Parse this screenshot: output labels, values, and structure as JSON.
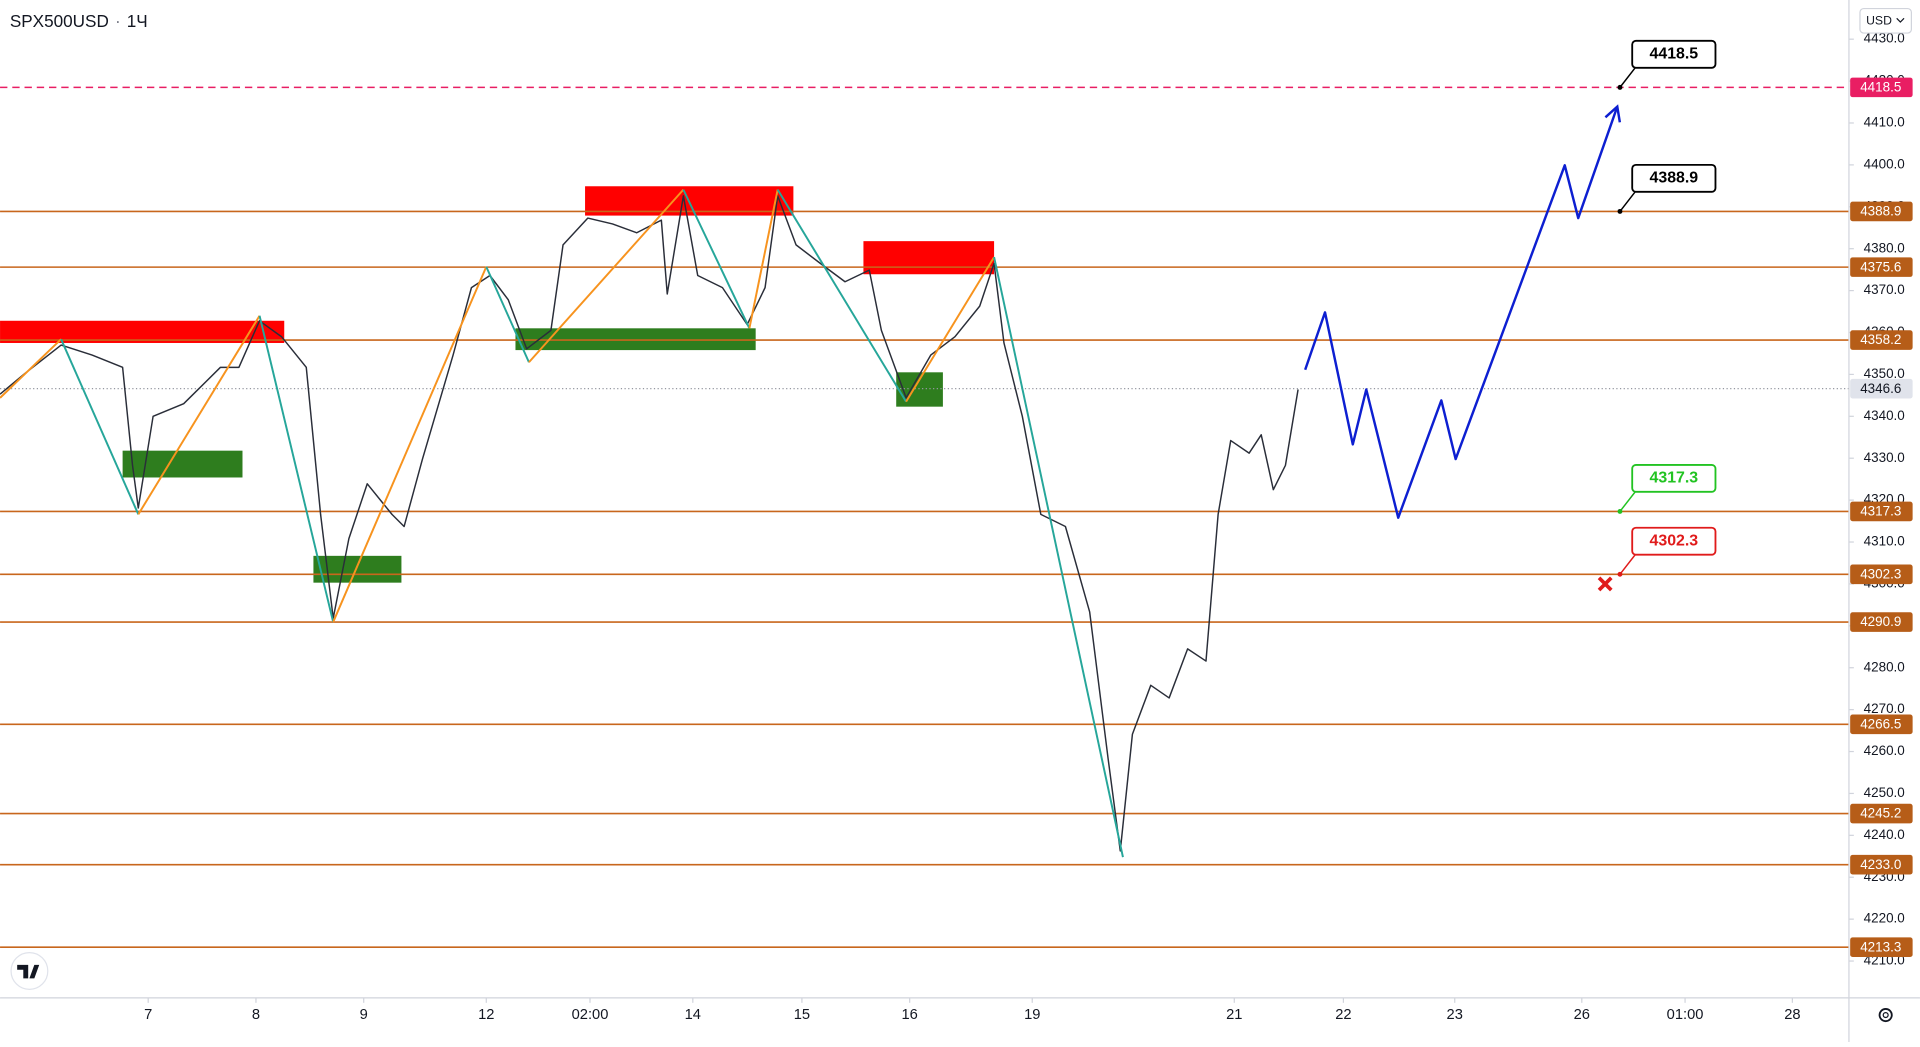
{
  "chart_data": {
    "type": "line",
    "symbol": "SPX500USD",
    "interval": "1Ч",
    "currency": "USD",
    "xlim": [
      0,
      411.8
    ],
    "ylim": [
      4201.2,
      4439.35
    ],
    "xticks": [
      {
        "value": 33,
        "label": "7"
      },
      {
        "value": 57,
        "label": "8"
      },
      {
        "value": 81,
        "label": "9"
      },
      {
        "value": 108.3,
        "label": "12"
      },
      {
        "value": 131.4,
        "label": "02:00"
      },
      {
        "value": 154.3,
        "label": "14"
      },
      {
        "value": 178.6,
        "label": "15"
      },
      {
        "value": 202.6,
        "label": "16"
      },
      {
        "value": 229.9,
        "label": "19"
      },
      {
        "value": 274.9,
        "label": "21"
      },
      {
        "value": 299.2,
        "label": "22"
      },
      {
        "value": 324,
        "label": "23"
      },
      {
        "value": 352.3,
        "label": "26"
      },
      {
        "value": 375.3,
        "label": "01:00"
      },
      {
        "value": 399.2,
        "label": "28"
      }
    ],
    "yticks": [
      {
        "value": 4210,
        "label": "4210.0"
      },
      {
        "value": 4220,
        "label": "4220.0"
      },
      {
        "value": 4230,
        "label": "4230.0"
      },
      {
        "value": 4240,
        "label": "4240.0"
      },
      {
        "value": 4250,
        "label": "4250.0"
      },
      {
        "value": 4260,
        "label": "4260.0"
      },
      {
        "value": 4270,
        "label": "4270.0"
      },
      {
        "value": 4280,
        "label": "4280.0"
      },
      {
        "value": 4290,
        "label": "4290.0"
      },
      {
        "value": 4300,
        "label": "4300.0"
      },
      {
        "value": 4310,
        "label": "4310.0"
      },
      {
        "value": 4320,
        "label": "4320.0"
      },
      {
        "value": 4330,
        "label": "4330.0"
      },
      {
        "value": 4340,
        "label": "4340.0"
      },
      {
        "value": 4350,
        "label": "4350.0"
      },
      {
        "value": 4360,
        "label": "4360.0"
      },
      {
        "value": 4370,
        "label": "4370.0"
      },
      {
        "value": 4380,
        "label": "4380.0"
      },
      {
        "value": 4390,
        "label": "4390.0"
      },
      {
        "value": 4400,
        "label": "4400.0"
      },
      {
        "value": 4410,
        "label": "4410.0"
      },
      {
        "value": 4420,
        "label": "4420.0"
      },
      {
        "value": 4430,
        "label": "4430.0"
      }
    ],
    "series": [
      {
        "name": "SPX500USD",
        "color": "#2a2e39",
        "x": [
          0,
          5.5,
          13.6,
          20.5,
          27.3,
          29.5,
          30.8,
          34.1,
          40.9,
          49.1,
          53.2,
          57.8,
          62.7,
          68.2,
          71.4,
          74.2,
          77.7,
          81.8,
          87.3,
          90,
          94.1,
          100.9,
          105,
          109.1,
          113.2,
          117.3,
          122.7,
          125.4,
          130.9,
          136.4,
          141.8,
          147.3,
          148.6,
          152.2,
          155.4,
          160.9,
          166.4,
          170.4,
          173.2,
          177.3,
          182.7,
          188.2,
          193.6,
          196.3,
          201.8,
          207.3,
          212.7,
          218.2,
          221.4,
          223.6,
          227.7,
          231.8,
          237.3,
          242.7,
          246.8,
          249.5,
          252.2,
          256.3,
          260.4,
          264.5,
          268.6,
          271.3,
          274.1,
          278.2,
          280.9,
          283.6,
          286.3,
          289.1
        ],
        "values": [
          4345.3,
          4350.2,
          4357,
          4354.6,
          4351.7,
          4328.3,
          4318.1,
          4340,
          4343,
          4351.7,
          4351.7,
          4362.8,
          4359,
          4351.7,
          4316.6,
          4291.8,
          4310.8,
          4323.9,
          4316.6,
          4313.7,
          4329.8,
          4354.6,
          4370.7,
          4373.6,
          4367.8,
          4356.1,
          4360.5,
          4380.9,
          4387.3,
          4385.9,
          4383.8,
          4386.8,
          4369.2,
          4392.6,
          4373.6,
          4370.7,
          4361.9,
          4370.7,
          4392.6,
          4380.9,
          4376.5,
          4372.1,
          4374.9,
          4360.5,
          4344.4,
          4354.6,
          4359,
          4366.3,
          4376.5,
          4357.5,
          4340,
          4316.6,
          4313.7,
          4293.3,
          4258.2,
          4236.3,
          4264.1,
          4275.8,
          4272.8,
          4284.5,
          4281.6,
          4316.6,
          4334.2,
          4331.2,
          4335.6,
          4322.5,
          4328.3,
          4346.4
        ]
      }
    ],
    "current_price": 4346.6,
    "zigzag": {
      "up_color": "#f7931e",
      "down_color": "#26a69a",
      "x": [
        0,
        13.6,
        30.8,
        57.8,
        74.2,
        108.3,
        117.8,
        152.2,
        166.9,
        173.2,
        201.8,
        221.4,
        250.1
      ],
      "values": [
        4344.4,
        4358.4,
        4316.6,
        4364,
        4290.9,
        4375.7,
        4352.9,
        4394.1,
        4361,
        4394.1,
        4343.5,
        4378,
        4234.8
      ]
    },
    "zones": [
      {
        "kind": "supply",
        "color": "#ff0000",
        "x": [
          0,
          63.3
        ],
        "values": [
          4357.5,
          4362.8
        ]
      },
      {
        "kind": "demand",
        "color": "#2e7d1e",
        "x": [
          27.3,
          54
        ],
        "values": [
          4325.4,
          4331.8
        ]
      },
      {
        "kind": "demand",
        "color": "#2e7d1e",
        "x": [
          69.8,
          89.4
        ],
        "values": [
          4300.3,
          4306.7
        ]
      },
      {
        "kind": "demand",
        "color": "#2e7d1e",
        "x": [
          114.8,
          168.3
        ],
        "values": [
          4355.8,
          4361
        ]
      },
      {
        "kind": "supply",
        "color": "#ff0000",
        "x": [
          130.3,
          176.7
        ],
        "values": [
          4387.9,
          4394.9
        ]
      },
      {
        "kind": "supply",
        "color": "#ff0000",
        "x": [
          192.3,
          221.4
        ],
        "values": [
          4373.9,
          4381.8
        ]
      },
      {
        "kind": "demand",
        "color": "#2e7d1e",
        "x": [
          199.6,
          210
        ],
        "values": [
          4342.3,
          4350.5
        ]
      }
    ],
    "levels": {
      "color": "#c8661c",
      "values": [
        4388.9,
        4375.6,
        4358.2,
        4317.3,
        4302.3,
        4290.9,
        4266.5,
        4245.2,
        {
          "value": 4233,
          "label": "4233.0"
        },
        4213.3
      ]
    },
    "target_level": {
      "value": 4418.5,
      "color": "#e91e63"
    },
    "projection": {
      "color": "#0d1fd1",
      "x": [
        290.7,
        295.1,
        301.3,
        304.3,
        311.4,
        321,
        324.2,
        348.5,
        351.5,
        360.2
      ],
      "values": [
        4351.1,
        4364.8,
        4333.3,
        4346.4,
        4315.8,
        4343.8,
        4329.8,
        4399.9,
        4387.3,
        4413.9
      ]
    },
    "callouts": [
      {
        "value": 4418.5,
        "x": 360.8,
        "color": "#000000"
      },
      {
        "value": 4388.9,
        "x": 360.8,
        "color": "#000000"
      },
      {
        "value": 4317.3,
        "x": 360.8,
        "color": "#22c322"
      },
      {
        "value": 4302.3,
        "x": 360.8,
        "color": "#e01b1b"
      }
    ],
    "stop_marker": {
      "x": 357.5,
      "y": 4300,
      "color": "#e01b1b"
    }
  }
}
